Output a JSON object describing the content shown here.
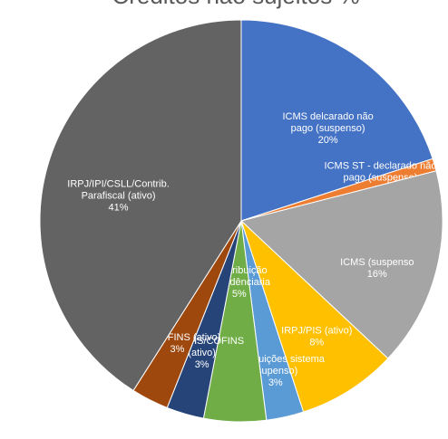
{
  "chart_data": {
    "type": "pie",
    "title": "Créditos não sujeitos %",
    "slices": [
      {
        "label": [
          "ICMS delcarado não",
          "pago (suspenso)"
        ],
        "value": 20,
        "display": "20%",
        "color": "#4472C4"
      },
      {
        "label": [
          "ICMS ST - declarado não",
          "pago (suspenso)"
        ],
        "value": 1,
        "display": "1%",
        "color": "#ED7D31"
      },
      {
        "label": [
          "ICMS (suspenso"
        ],
        "value": 16,
        "display": "16%",
        "color": "#A5A5A5"
      },
      {
        "label": [
          "IRPJ/PIS (ativo)"
        ],
        "value": 8,
        "display": "8%",
        "color": "#FFC000"
      },
      {
        "label": [
          "Contribuições sistema",
          "(supenso)"
        ],
        "value": 3,
        "display": "3%",
        "color": "#5B9BD5"
      },
      {
        "label": [
          "Contribuição",
          "previdênciaria"
        ],
        "value": 5,
        "display": "5%",
        "color": "#70AD47"
      },
      {
        "label": [
          "ICMS/PIS/COFINS",
          "(ativo)"
        ],
        "value": 3,
        "display": "3%",
        "color": "#264478"
      },
      {
        "label": [
          "PIS/COFINS (ativo)"
        ],
        "value": 3,
        "display": "3%",
        "color": "#9E480E"
      },
      {
        "label": [
          "IRPJ/IPI/CSLL/Contrib.",
          "Parafiscal (ativo)"
        ],
        "value": 41,
        "display": "41%",
        "color": "#636363"
      }
    ]
  }
}
